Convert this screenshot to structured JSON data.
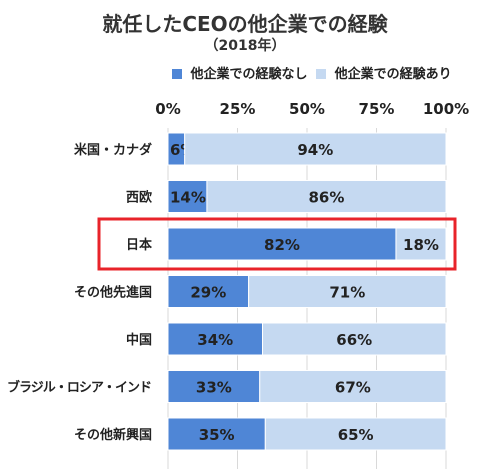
{
  "chart_data": {
    "type": "bar",
    "orientation": "horizontal",
    "stacked": true,
    "title": "就任したCEOの他企業での経験",
    "subtitle": "（2018年）",
    "categories": [
      "米国・カナダ",
      "西欧",
      "日本",
      "その他先進国",
      "中国",
      "ブラジル・ロシア・インド",
      "その他新興国"
    ],
    "series": [
      {
        "name": "他企業での経験なし",
        "values": [
          6,
          14,
          82,
          29,
          34,
          33,
          35
        ],
        "color": "#4F86D6"
      },
      {
        "name": "他企業での経験あり",
        "values": [
          94,
          86,
          18,
          71,
          66,
          67,
          65
        ],
        "color": "#C5D9F1"
      }
    ],
    "value_labels": [
      [
        "6%",
        "94%"
      ],
      [
        "14%",
        "86%"
      ],
      [
        "82%",
        "18%"
      ],
      [
        "29%",
        "71%"
      ],
      [
        "34%",
        "66%"
      ],
      [
        "33%",
        "67%"
      ],
      [
        "35%",
        "65%"
      ]
    ],
    "xlim": [
      0,
      100
    ],
    "xticks": [
      "0%",
      "25%",
      "50%",
      "75%",
      "100%"
    ],
    "grid": true,
    "legend_position": "top",
    "highlighted_category": "日本",
    "highlight_color": "#E8232A"
  }
}
